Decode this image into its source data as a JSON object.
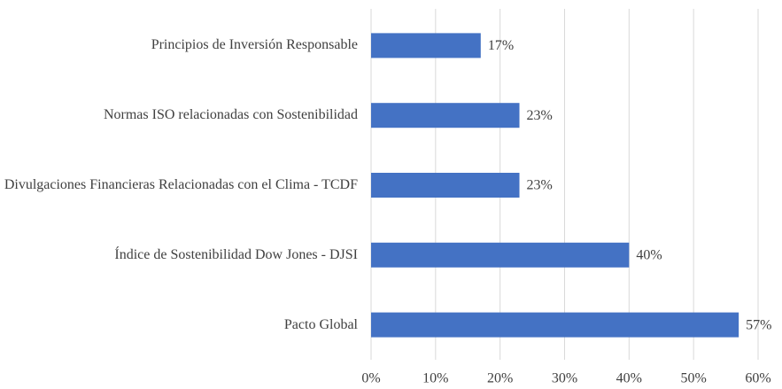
{
  "chart_data": {
    "type": "bar",
    "orientation": "horizontal",
    "categories": [
      "Principios de Inversión Responsable",
      "Normas ISO relacionadas con Sostenibilidad",
      "Divulgaciones Financieras Relacionadas con el Clima - TCDF",
      "Índice de Sostenibilidad Dow Jones - DJSI",
      "Pacto Global"
    ],
    "values": [
      17,
      23,
      23,
      40,
      57
    ],
    "value_labels": [
      "17%",
      "23%",
      "23%",
      "40%",
      "57%"
    ],
    "color": "#4472c4",
    "xlim": [
      0,
      60
    ],
    "xticks": [
      {
        "value": 0,
        "label": "0%"
      },
      {
        "value": 10,
        "label": "10%"
      },
      {
        "value": 20,
        "label": "20%"
      },
      {
        "value": 30,
        "label": "30%"
      },
      {
        "value": 40,
        "label": "40%"
      },
      {
        "value": 50,
        "label": "50%"
      },
      {
        "value": 60,
        "label": "60%"
      }
    ],
    "grid": true
  }
}
